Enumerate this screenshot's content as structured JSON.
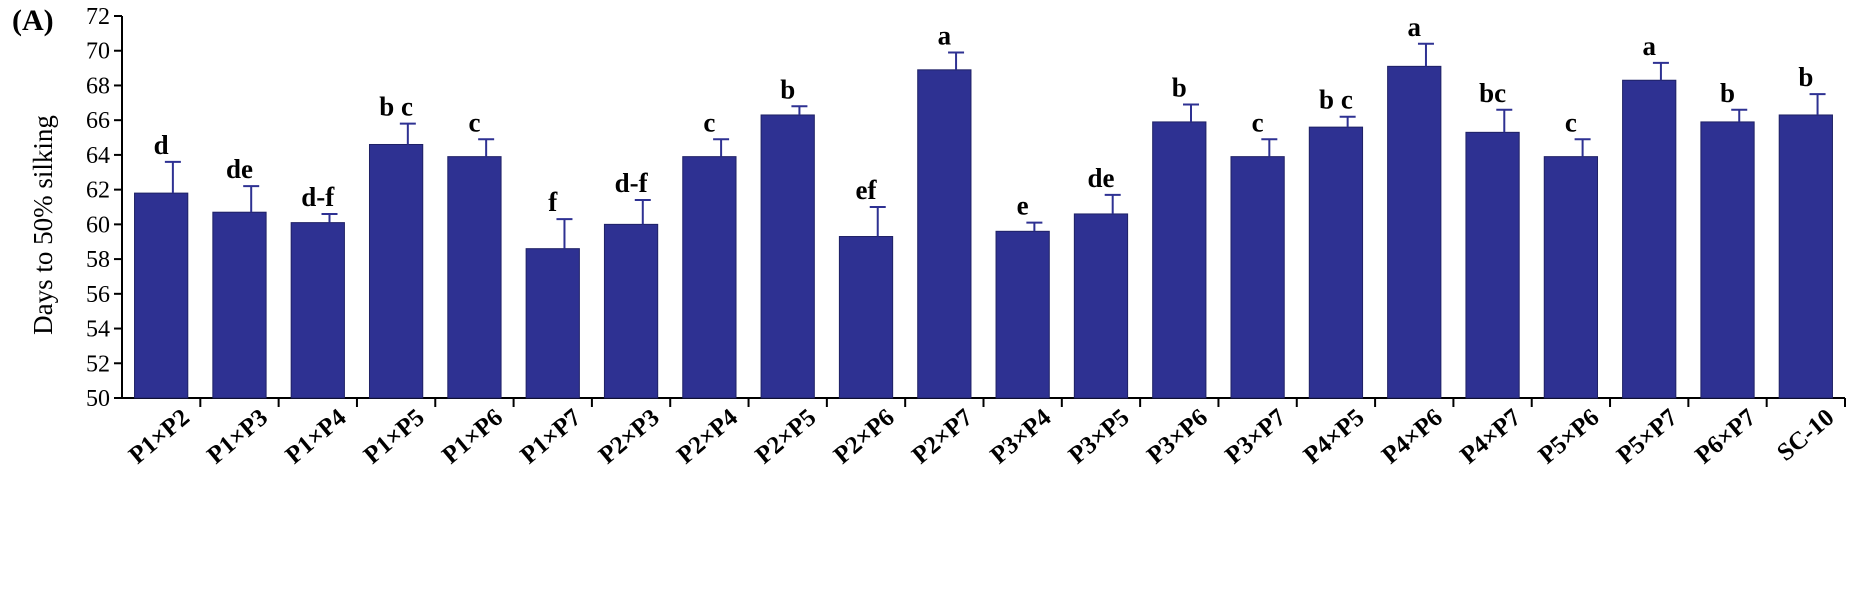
{
  "chart_data": {
    "type": "bar",
    "panel_label": "(A)",
    "ylabel": "Days to 50% silking",
    "xlabel": "",
    "ylim": [
      50,
      72
    ],
    "yticks": [
      50,
      52,
      54,
      56,
      58,
      60,
      62,
      64,
      66,
      68,
      70,
      72
    ],
    "grid": false,
    "bar_color": "#2E3192",
    "categories": [
      "P1×P2",
      "P1×P3",
      "P1×P4",
      "P1×P5",
      "P1×P6",
      "P1×P7",
      "P2×P3",
      "P2×P4",
      "P2×P5",
      "P2×P6",
      "P2×P7",
      "P3×P4",
      "P3×P5",
      "P3×P6",
      "P3×P7",
      "P4×P5",
      "P4×P6",
      "P4×P7",
      "P5×P6",
      "P5×P7",
      "P6×P7",
      "SC-10"
    ],
    "values": [
      61.8,
      60.7,
      60.1,
      64.6,
      63.9,
      58.6,
      60.0,
      63.9,
      66.3,
      59.3,
      68.9,
      59.6,
      60.6,
      65.9,
      63.9,
      65.6,
      69.1,
      65.3,
      63.9,
      68.3,
      65.9,
      66.3
    ],
    "error_upper": [
      1.8,
      1.5,
      0.5,
      1.2,
      1.0,
      1.7,
      1.4,
      1.0,
      0.5,
      1.7,
      1.0,
      0.5,
      1.1,
      1.0,
      1.0,
      0.6,
      1.3,
      1.3,
      1.0,
      1.0,
      0.7,
      1.2
    ],
    "significance_labels": [
      "d",
      "de",
      "d-f",
      "b c",
      "c",
      "f",
      "d-f",
      "c",
      "b",
      "ef",
      "a",
      "e",
      "de",
      "b",
      "c",
      "b c",
      "a",
      "bc",
      "c",
      "a",
      "b",
      "b"
    ]
  }
}
